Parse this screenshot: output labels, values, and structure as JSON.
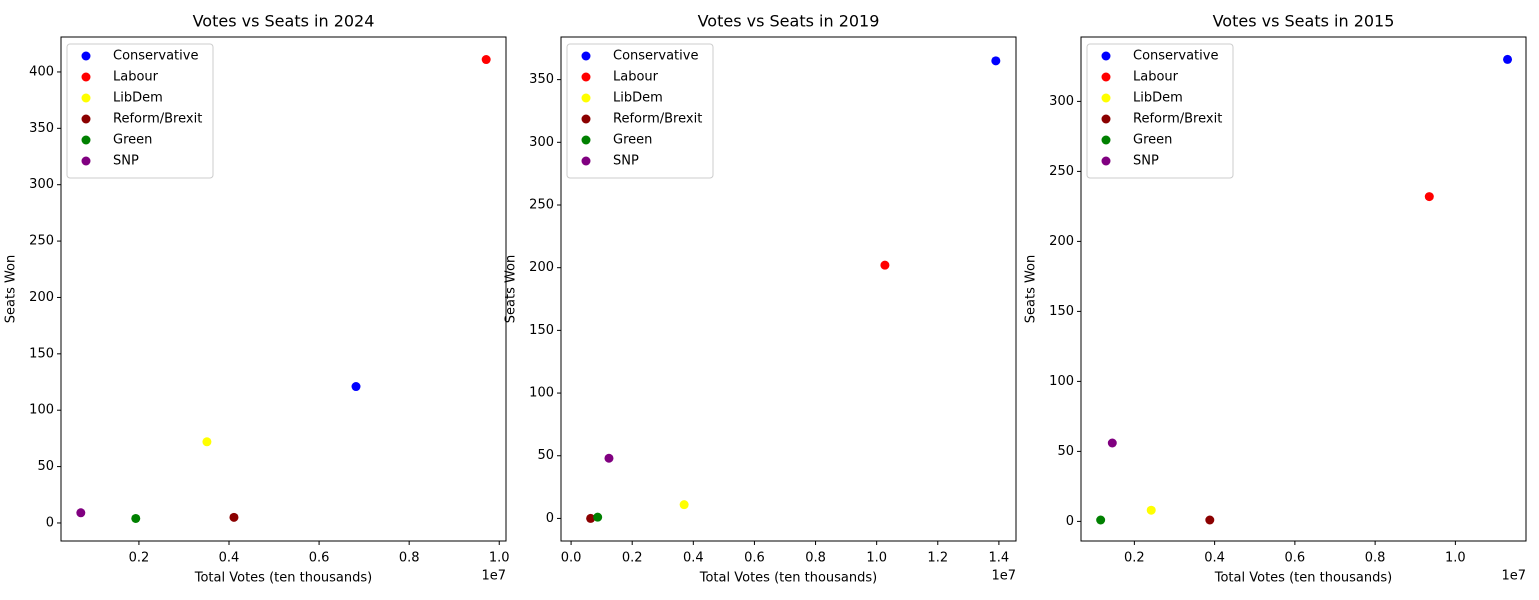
{
  "chart_data": [
    {
      "type": "scatter",
      "title": "Votes vs Seats in 2024",
      "x_label": "Total Votes (ten thousands)",
      "y_label": "Seats Won",
      "x_offset_label": "1e7",
      "legend": "upper left",
      "xlim": [
        270000,
        10150000
      ],
      "ylim": [
        -16,
        431
      ],
      "xticks": [
        {
          "value": 2000000,
          "label": "0.2"
        },
        {
          "value": 4000000,
          "label": "0.4"
        },
        {
          "value": 6000000,
          "label": "0.6"
        },
        {
          "value": 8000000,
          "label": "0.8"
        },
        {
          "value": 10000000,
          "label": "1.0"
        }
      ],
      "yticks": [
        0,
        50,
        100,
        150,
        200,
        250,
        300,
        350,
        400
      ],
      "series": [
        {
          "name": "Conservative",
          "color": "#0000ff",
          "x": [
            6820000
          ],
          "values": [
            121
          ]
        },
        {
          "name": "Labour",
          "color": "#ff0000",
          "x": [
            9710000
          ],
          "values": [
            411
          ]
        },
        {
          "name": "LibDem",
          "color": "#ffff00",
          "x": [
            3510000
          ],
          "values": [
            72
          ]
        },
        {
          "name": "Reform/Brexit",
          "color": "#8b0000",
          "x": [
            4110000
          ],
          "values": [
            5
          ]
        },
        {
          "name": "Green",
          "color": "#008000",
          "x": [
            1930000
          ],
          "values": [
            4
          ]
        },
        {
          "name": "SNP",
          "color": "#800080",
          "x": [
            710000
          ],
          "values": [
            9
          ]
        }
      ]
    },
    {
      "type": "scatter",
      "title": "Votes vs Seats in 2019",
      "x_label": "Total Votes (ten thousands)",
      "y_label": "Seats Won",
      "x_offset_label": "1e7",
      "legend": "upper left",
      "xlim": [
        -330000,
        14560000
      ],
      "ylim": [
        -18,
        384
      ],
      "xticks": [
        {
          "value": 0,
          "label": "0.0"
        },
        {
          "value": 2000000,
          "label": "0.2"
        },
        {
          "value": 4000000,
          "label": "0.4"
        },
        {
          "value": 6000000,
          "label": "0.6"
        },
        {
          "value": 8000000,
          "label": "0.8"
        },
        {
          "value": 10000000,
          "label": "1.0"
        },
        {
          "value": 12000000,
          "label": "1.2"
        },
        {
          "value": 14000000,
          "label": "1.4"
        }
      ],
      "yticks": [
        0,
        50,
        100,
        150,
        200,
        250,
        300,
        350
      ],
      "series": [
        {
          "name": "Conservative",
          "color": "#0000ff",
          "x": [
            13900000
          ],
          "values": [
            365
          ]
        },
        {
          "name": "Labour",
          "color": "#ff0000",
          "x": [
            10270000
          ],
          "values": [
            202
          ]
        },
        {
          "name": "LibDem",
          "color": "#ffff00",
          "x": [
            3700000
          ],
          "values": [
            11
          ]
        },
        {
          "name": "Reform/Brexit",
          "color": "#8b0000",
          "x": [
            640000
          ],
          "values": [
            0
          ]
        },
        {
          "name": "Green",
          "color": "#008000",
          "x": [
            870000
          ],
          "values": [
            1
          ]
        },
        {
          "name": "SNP",
          "color": "#800080",
          "x": [
            1240000
          ],
          "values": [
            48
          ]
        }
      ]
    },
    {
      "type": "scatter",
      "title": "Votes vs Seats in 2015",
      "x_label": "Total Votes (ten thousands)",
      "y_label": "Seats Won",
      "x_offset_label": "1e7",
      "legend": "upper left",
      "xlim": [
        670000,
        11760000
      ],
      "ylim": [
        -14,
        346
      ],
      "xticks": [
        {
          "value": 2000000,
          "label": "0.2"
        },
        {
          "value": 4000000,
          "label": "0.4"
        },
        {
          "value": 6000000,
          "label": "0.6"
        },
        {
          "value": 8000000,
          "label": "0.8"
        },
        {
          "value": 10000000,
          "label": "1.0"
        }
      ],
      "yticks": [
        0,
        50,
        100,
        150,
        200,
        250,
        300
      ],
      "series": [
        {
          "name": "Conservative",
          "color": "#0000ff",
          "x": [
            11300000
          ],
          "values": [
            330
          ]
        },
        {
          "name": "Labour",
          "color": "#ff0000",
          "x": [
            9350000
          ],
          "values": [
            232
          ]
        },
        {
          "name": "LibDem",
          "color": "#ffff00",
          "x": [
            2420000
          ],
          "values": [
            8
          ]
        },
        {
          "name": "Reform/Brexit",
          "color": "#8b0000",
          "x": [
            3880000
          ],
          "values": [
            1
          ]
        },
        {
          "name": "Green",
          "color": "#008000",
          "x": [
            1160000
          ],
          "values": [
            1
          ]
        },
        {
          "name": "SNP",
          "color": "#800080",
          "x": [
            1450000
          ],
          "values": [
            56
          ]
        }
      ]
    }
  ]
}
